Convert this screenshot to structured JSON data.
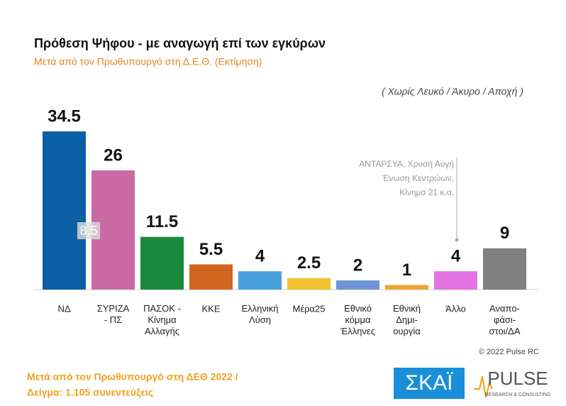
{
  "chart_data": {
    "type": "bar",
    "title": "Πρόθεση Ψήφου - με αναγωγή επί των εγκύρων",
    "subtitle": "Μετά από τον Πρωθυπουργό στη Δ.Ε.Θ.   (Εκτίμηση)",
    "note": "( Χωρίς Λευκό / Άκυρο / Αποχή )",
    "categories": [
      "ΝΔ",
      "ΣΥΡΙΖΑ\n- ΠΣ",
      "ΠΑΣΟΚ -\nΚίνημα\nΑλλαγής",
      "ΚΚΕ",
      "Ελληνική\nΛύση",
      "Μέρα25",
      "Εθνικό\nκόμμα\nΈλληνες",
      "Εθνική\nΔημι-\nουργία",
      "Άλλο",
      "Αναπο-\nφάσι-\nστοι/ΔΑ"
    ],
    "values": [
      34.5,
      26,
      11.5,
      5.5,
      4,
      2.5,
      2,
      1,
      4,
      9
    ],
    "colors": [
      "#0b5fa5",
      "#c96aa5",
      "#1b8a3c",
      "#d2661c",
      "#4aa0dc",
      "#f2c230",
      "#6f93d8",
      "#f0a332",
      "#e473e4",
      "#808080"
    ],
    "ylim": [
      0,
      35
    ],
    "annotations": [
      "8.5",
      "ΑΝΤΑΡΣΥΑ, Χρυσή Αυγή\nΈνωση Κεντρώων,\nΚίνημα 21   κ.α."
    ],
    "copyright": "© 2022 Pulse RC",
    "footer": [
      "Μετά από τον Πρωθυπουργό στη ΔΕΘ  2022  /",
      "Δείγμα:  1.105 συνεντεύξεις"
    ],
    "logos": [
      "ΣΚΑΪ",
      "PULSE",
      "RESEARCH & CONSULTING"
    ]
  }
}
